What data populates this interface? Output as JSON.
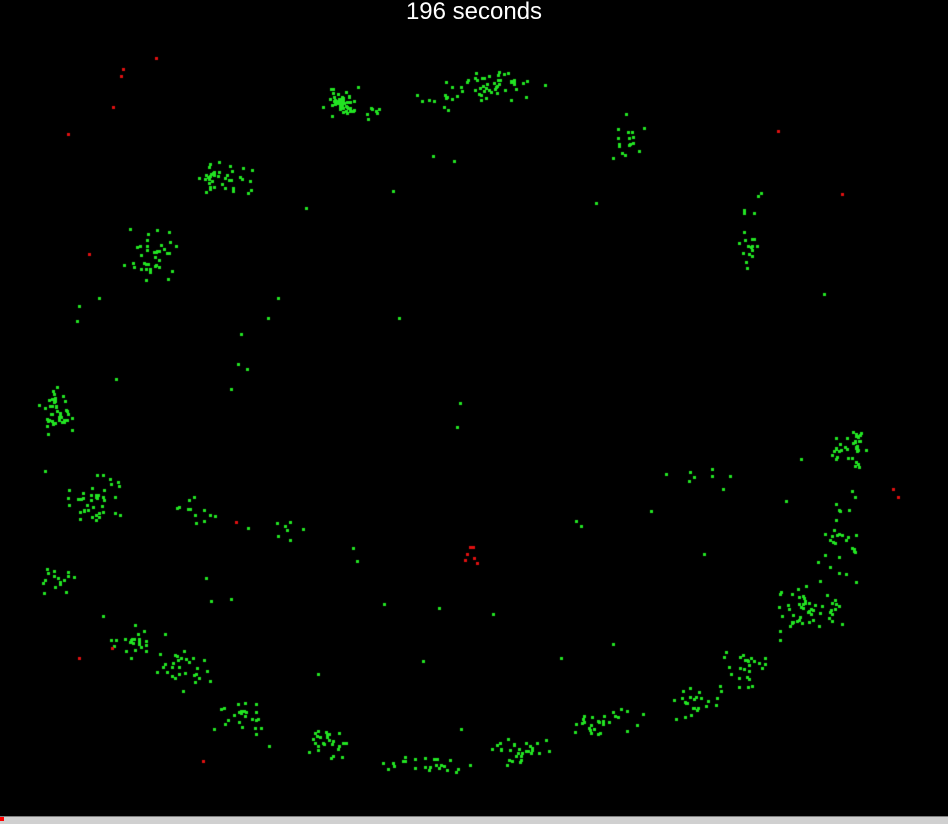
{
  "timer": {
    "label": "196 seconds"
  },
  "colors": {
    "background": "#000000",
    "healthy": "#22e422",
    "infected": "#e01010",
    "text": "#ffffff"
  }
}
